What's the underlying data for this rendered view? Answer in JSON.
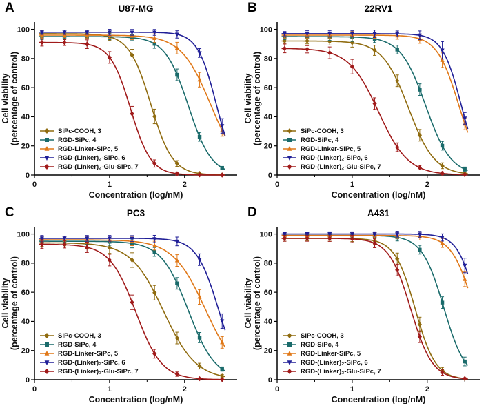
{
  "figure": {
    "xlabel": "Concentration (log/nM)",
    "ylabel_line1": "Cell viability",
    "ylabel_line2": "(percentage of control)"
  },
  "chart_data": [
    {
      "panel_label": "A",
      "title": "U87-MG",
      "type": "line",
      "xlabel": "Concentration (log/nM)",
      "ylabel": [
        "Cell viability",
        "(percentage of control)"
      ],
      "xlim": [
        0,
        2.7
      ],
      "ylim": [
        0,
        105
      ],
      "xticks": [
        0,
        1,
        2
      ],
      "xminorticks": [
        0.5,
        1.5,
        2.5
      ],
      "yticks": [
        0,
        20,
        40,
        60,
        80,
        100
      ],
      "grid": false,
      "legend_position": "lower-left",
      "x": [
        0.1,
        0.4,
        0.7,
        1.0,
        1.3,
        1.6,
        1.9,
        2.2,
        2.5
      ],
      "series": [
        {
          "name": "SiPc-COOH, 3",
          "color": "#8f6b0f",
          "marker": "diamond",
          "y": [
            97,
            97,
            96.9,
            94.9,
            82.3,
            40.2,
            7.9,
            1.1,
            0.1
          ],
          "yerr": [
            2,
            1.5,
            2,
            2.5,
            4,
            5,
            2,
            1,
            0.5
          ],
          "curve": {
            "top": 97,
            "bottom": 0,
            "logic50": 1.55,
            "hill": 3.0
          }
        },
        {
          "name": "RGD-SiPc, 4",
          "color": "#1a6b6b",
          "marker": "square",
          "y": [
            95,
            95,
            94.9,
            94.9,
            94.3,
            90,
            68.8,
            26.2,
            4.9
          ],
          "yerr": [
            2,
            2,
            1.5,
            2,
            2,
            3,
            4,
            3,
            1
          ],
          "curve": {
            "top": 95,
            "bottom": 0,
            "logic50": 2.05,
            "hill": 2.8
          }
        },
        {
          "name": "RGD-Linker-SiPc, 5",
          "color": "#e07818",
          "marker": "triangle-up",
          "y": [
            96,
            96,
            96,
            95.9,
            95.5,
            93.9,
            87.1,
            65.4,
            30.6
          ],
          "yerr": [
            2,
            1.5,
            2,
            2,
            2.5,
            3,
            4,
            5,
            4
          ],
          "curve": {
            "top": 96,
            "bottom": 0,
            "logic50": 2.35,
            "hill": 2.2
          }
        },
        {
          "name": "RGD-(Linker)₂-SiPc, 6",
          "color": "#201f97",
          "marker": "triangle-down",
          "y": [
            98,
            98,
            98,
            98,
            97.9,
            97.9,
            96.5,
            83.8,
            33.7
          ],
          "yerr": [
            1.5,
            1.5,
            1.5,
            2,
            2,
            2,
            2.5,
            3,
            5
          ],
          "curve": {
            "top": 98,
            "bottom": 0,
            "logic50": 2.42,
            "hill": 3.5
          }
        },
        {
          "name": "RGD-(Linker)₂-Glu-SiPc, 7",
          "color": "#a01a1a",
          "marker": "diamond",
          "y": [
            91,
            90.9,
            89.8,
            80.7,
            42.1,
            7.9,
            0.9,
            0.1,
            0
          ],
          "yerr": [
            2.5,
            2,
            3,
            4,
            5,
            2.5,
            1,
            0.5,
            0.5
          ],
          "curve": {
            "top": 91,
            "bottom": 0,
            "logic50": 1.28,
            "hill": 3.2
          }
        }
      ]
    },
    {
      "panel_label": "B",
      "title": "22RV1",
      "type": "line",
      "xlabel": "Concentration (log/nM)",
      "ylabel": [
        "Cell viability",
        "(percentage of control)"
      ],
      "xlim": [
        0,
        2.7
      ],
      "ylim": [
        0,
        105
      ],
      "xticks": [
        0,
        1,
        2
      ],
      "xminorticks": [
        0.5,
        1.5,
        2.5
      ],
      "yticks": [
        0,
        20,
        40,
        60,
        80,
        100
      ],
      "grid": false,
      "legend_position": "lower-left",
      "x": [
        0.1,
        0.4,
        0.7,
        1.0,
        1.3,
        1.6,
        1.9,
        2.2,
        2.5
      ],
      "series": [
        {
          "name": "SiPc-COOH, 3",
          "color": "#8f6b0f",
          "marker": "diamond",
          "y": [
            92,
            92,
            91.7,
            90.8,
            85.6,
            64.7,
            27.3,
            6.4,
            1.2
          ],
          "yerr": [
            2,
            2,
            2.5,
            3,
            3.5,
            4,
            4,
            2,
            1
          ],
          "curve": {
            "top": 92,
            "bottom": 0,
            "logic50": 1.75,
            "hill": 2.5
          }
        },
        {
          "name": "RGD-SiPc, 4",
          "color": "#1a6b6b",
          "marker": "square",
          "y": [
            95,
            95,
            94.9,
            94.7,
            93.4,
            86.1,
            58.6,
            20.1,
            4
          ],
          "yerr": [
            2,
            3,
            2.5,
            3,
            2.5,
            3,
            4,
            3,
            1.5
          ],
          "curve": {
            "top": 95,
            "bottom": 0,
            "logic50": 1.98,
            "hill": 2.6
          }
        },
        {
          "name": "RGD-Linker-SiPc, 5",
          "color": "#e07818",
          "marker": "triangle-up",
          "y": [
            96,
            96,
            96,
            96,
            95.9,
            95.7,
            93.4,
            78.8,
            35.1
          ],
          "yerr": [
            2,
            2,
            2,
            2.5,
            2,
            2.5,
            3,
            5,
            4
          ],
          "curve": {
            "top": 96,
            "bottom": 0,
            "logic50": 2.42,
            "hill": 3.0
          }
        },
        {
          "name": "RGD-(Linker)₂-SiPc, 6",
          "color": "#201f97",
          "marker": "triangle-down",
          "y": [
            97,
            97,
            97,
            97,
            97,
            96.9,
            95.9,
            85.6,
            38.9
          ],
          "yerr": [
            1.5,
            2,
            2,
            2,
            2.5,
            2,
            3,
            6,
            4
          ],
          "curve": {
            "top": 97,
            "bottom": 0,
            "logic50": 2.45,
            "hill": 3.5
          }
        },
        {
          "name": "RGD-(Linker)₂-Glu-SiPc, 7",
          "color": "#a01a1a",
          "marker": "diamond",
          "y": [
            86.9,
            86.3,
            83.9,
            74.4,
            49,
            19.1,
            5.1,
            1.2,
            0.3
          ],
          "yerr": [
            3,
            2.5,
            4,
            5,
            4,
            3,
            1.5,
            1,
            0.5
          ],
          "curve": {
            "top": 87,
            "bottom": 0,
            "logic50": 1.35,
            "hill": 2.2
          }
        }
      ]
    },
    {
      "panel_label": "C",
      "title": "PC3",
      "type": "line",
      "xlabel": "Concentration (log/nM)",
      "ylabel": [
        "Cell viability",
        "(percentage of control)"
      ],
      "xlim": [
        0,
        2.7
      ],
      "ylim": [
        0,
        105
      ],
      "xticks": [
        0,
        1,
        2
      ],
      "xminorticks": [
        0.5,
        1.5,
        2.5
      ],
      "yticks": [
        0,
        20,
        40,
        60,
        80,
        100
      ],
      "grid": false,
      "legend_position": "lower-left",
      "x": [
        0.1,
        0.4,
        0.7,
        1.0,
        1.3,
        1.6,
        1.9,
        2.2,
        2.5
      ],
      "series": [
        {
          "name": "SiPc-COOH, 3",
          "color": "#8f6b0f",
          "marker": "diamond",
          "y": [
            94,
            93.9,
            93.1,
            90.7,
            82.1,
            59.7,
            28.6,
            9.3,
            2.5
          ],
          "yerr": [
            2.5,
            2,
            3,
            4,
            5,
            5,
            4,
            2,
            1
          ],
          "curve": {
            "top": 94,
            "bottom": 0,
            "logic50": 1.72,
            "hill": 2.0
          }
        },
        {
          "name": "RGD-SiPc, 4",
          "color": "#1a6b6b",
          "marker": "square",
          "y": [
            95,
            95,
            94.9,
            94.7,
            93.5,
            87.7,
            66.1,
            28.9,
            7.3
          ],
          "yerr": [
            2,
            2.5,
            2,
            2.5,
            3,
            3,
            4,
            3.5,
            1.5
          ],
          "curve": {
            "top": 95,
            "bottom": 0,
            "logic50": 2.05,
            "hill": 2.4
          }
        },
        {
          "name": "RGD-Linker-SiPc, 5",
          "color": "#e07818",
          "marker": "triangle-up",
          "y": [
            96,
            96,
            96,
            95.9,
            95,
            92,
            81.8,
            56.8,
            25.6
          ],
          "yerr": [
            2,
            2,
            2.5,
            2,
            3,
            3,
            4,
            5,
            4
          ],
          "curve": {
            "top": 96,
            "bottom": 0,
            "logic50": 2.28,
            "hill": 2.0
          }
        },
        {
          "name": "RGD-(Linker)₂-SiPc, 6",
          "color": "#201f97",
          "marker": "triangle-down",
          "y": [
            97,
            97,
            97,
            97,
            96.9,
            96.6,
            94.9,
            82.4,
            40.2
          ],
          "yerr": [
            2,
            1.5,
            2,
            2,
            2,
            2.5,
            3,
            4,
            5
          ],
          "curve": {
            "top": 97,
            "bottom": 0,
            "logic50": 2.45,
            "hill": 3.0
          }
        },
        {
          "name": "RGD-(Linker)₂-Glu-SiPc, 7",
          "color": "#a01a1a",
          "marker": "diamond",
          "y": [
            93,
            92.9,
            90.8,
            82.1,
            53.1,
            17.8,
            3.8,
            0.7,
            0.1
          ],
          "yerr": [
            3,
            2.5,
            3.5,
            4,
            5,
            3,
            1.5,
            0.5,
            0.5
          ],
          "curve": {
            "top": 93,
            "bottom": 0,
            "logic50": 1.35,
            "hill": 2.5
          }
        }
      ]
    },
    {
      "panel_label": "D",
      "title": "A431",
      "type": "line",
      "xlabel": "Concentration (log/nM)",
      "ylabel": [
        "Cell viability",
        "(percentage of control)"
      ],
      "xlim": [
        0,
        2.7
      ],
      "ylim": [
        0,
        105
      ],
      "xticks": [
        0,
        1,
        2
      ],
      "xminorticks": [
        0.5,
        1.5,
        2.5
      ],
      "yticks": [
        0,
        20,
        40,
        60,
        80,
        100
      ],
      "grid": false,
      "legend_position": "lower-left",
      "x": [
        0.1,
        0.4,
        0.7,
        1.0,
        1.3,
        1.6,
        1.9,
        2.2,
        2.5
      ],
      "series": [
        {
          "name": "SiPc-COOH, 3",
          "color": "#8f6b0f",
          "marker": "diamond",
          "y": [
            97,
            97,
            97,
            96.8,
            95.2,
            82.9,
            37.9,
            6.4,
            0.7
          ],
          "yerr": [
            2,
            1.5,
            2,
            2,
            2.5,
            4,
            5,
            2,
            0.5
          ],
          "curve": {
            "top": 97,
            "bottom": 0,
            "logic50": 1.84,
            "hill": 3.2
          }
        },
        {
          "name": "RGD-SiPc, 4",
          "color": "#1a6b6b",
          "marker": "square",
          "y": [
            99,
            99,
            99,
            98.9,
            98.8,
            97.7,
            89.2,
            52.9,
            12.5
          ],
          "yerr": [
            1.5,
            1.5,
            2,
            2,
            2,
            2.5,
            3,
            4,
            3
          ],
          "curve": {
            "top": 99,
            "bottom": 0,
            "logic50": 2.22,
            "hill": 3.0
          }
        },
        {
          "name": "RGD-Linker-SiPc, 5",
          "color": "#e07818",
          "marker": "triangle-up",
          "y": [
            99,
            99,
            99,
            99,
            99,
            98.9,
            98.3,
            93.8,
            68.9
          ],
          "yerr": [
            1.5,
            1.5,
            1.5,
            2,
            2,
            2,
            2.5,
            3,
            5
          ],
          "curve": {
            "top": 99,
            "bottom": 0,
            "logic50": 2.62,
            "hill": 3.0
          }
        },
        {
          "name": "RGD-(Linker)₂-SiPc, 6",
          "color": "#201f97",
          "marker": "triangle-down",
          "y": [
            100,
            100,
            100,
            100,
            100,
            99.9,
            99.8,
            97.6,
            78.4
          ],
          "yerr": [
            1,
            1,
            1.5,
            1.5,
            1.5,
            2,
            2,
            2.5,
            5
          ],
          "curve": {
            "top": 100,
            "bottom": 0,
            "logic50": 2.66,
            "hill": 3.5
          }
        },
        {
          "name": "RGD-(Linker)₂-Glu-SiPc, 7",
          "color": "#a01a1a",
          "marker": "diamond",
          "y": [
            97,
            97,
            96.9,
            96.6,
            93.6,
            75.3,
            29.5,
            5.1,
            0.8
          ],
          "yerr": [
            2,
            2,
            2,
            2.5,
            3,
            4,
            4,
            2,
            0.5
          ],
          "curve": {
            "top": 97,
            "bottom": 0,
            "logic50": 1.78,
            "hill": 3.0
          }
        }
      ]
    }
  ]
}
